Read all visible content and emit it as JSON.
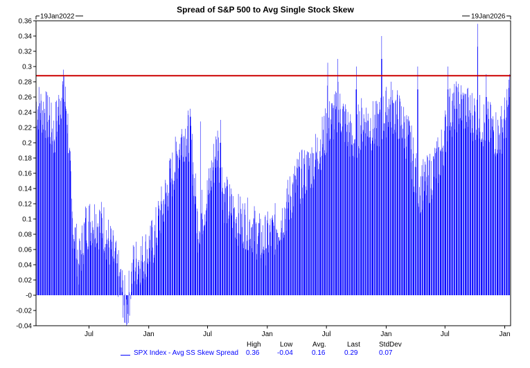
{
  "chart_data": {
    "type": "bar",
    "title": "Spread of S&P 500 to Avg Single Stock Skew",
    "start_label": "19Jan2022",
    "end_label": "19Jan2026",
    "ylim": [
      -0.04,
      0.36
    ],
    "yticks": [
      "0.36",
      "0.34",
      "0.32",
      "0.3",
      "0.28",
      "0.26",
      "0.24",
      "0.22",
      "0.2",
      "0.18",
      "0.16",
      "0.14",
      "0.12",
      "0.1",
      "0.08",
      "0.06",
      "0.04",
      "0.02",
      "-0",
      "-0.02",
      "-0.04"
    ],
    "xticks": [
      "Jul",
      "Jan",
      "Jul",
      "Jan",
      "Jul",
      "Jan",
      "Jul",
      "Jan"
    ],
    "reference_line": 0.288,
    "series_color": "#0000ff",
    "reference_color": "#cc0000",
    "series": [
      {
        "name": "SPX Index - Avg SS Skew Spread",
        "x_start": "2022-01-19",
        "x_end": "2026-01-19",
        "anchors": [
          {
            "date": "2022-01-19",
            "value": 0.25
          },
          {
            "date": "2022-02-15",
            "value": 0.24
          },
          {
            "date": "2022-03-15",
            "value": 0.21
          },
          {
            "date": "2022-04-10",
            "value": 0.27
          },
          {
            "date": "2022-04-25",
            "value": 0.24
          },
          {
            "date": "2022-05-10",
            "value": 0.1
          },
          {
            "date": "2022-06-01",
            "value": 0.04
          },
          {
            "date": "2022-06-20",
            "value": 0.09
          },
          {
            "date": "2022-07-15",
            "value": 0.1
          },
          {
            "date": "2022-08-15",
            "value": 0.09
          },
          {
            "date": "2022-09-15",
            "value": 0.05
          },
          {
            "date": "2022-10-10",
            "value": 0.01
          },
          {
            "date": "2022-10-25",
            "value": -0.02
          },
          {
            "date": "2022-11-15",
            "value": 0.04
          },
          {
            "date": "2022-12-15",
            "value": 0.05
          },
          {
            "date": "2023-01-15",
            "value": 0.07
          },
          {
            "date": "2023-02-15",
            "value": 0.12
          },
          {
            "date": "2023-03-15",
            "value": 0.16
          },
          {
            "date": "2023-04-15",
            "value": 0.21
          },
          {
            "date": "2023-05-10",
            "value": 0.21
          },
          {
            "date": "2023-06-01",
            "value": 0.09
          },
          {
            "date": "2023-07-01",
            "value": 0.13
          },
          {
            "date": "2023-08-01",
            "value": 0.2
          },
          {
            "date": "2023-08-20",
            "value": 0.13
          },
          {
            "date": "2023-10-01",
            "value": 0.1
          },
          {
            "date": "2023-11-15",
            "value": 0.09
          },
          {
            "date": "2023-12-15",
            "value": 0.07
          },
          {
            "date": "2024-01-15",
            "value": 0.08
          },
          {
            "date": "2024-02-15",
            "value": 0.1
          },
          {
            "date": "2024-04-01",
            "value": 0.15
          },
          {
            "date": "2024-05-15",
            "value": 0.17
          },
          {
            "date": "2024-06-15",
            "value": 0.2
          },
          {
            "date": "2024-07-15",
            "value": 0.23
          },
          {
            "date": "2024-08-15",
            "value": 0.24
          },
          {
            "date": "2024-09-20",
            "value": 0.2
          },
          {
            "date": "2024-10-20",
            "value": 0.23
          },
          {
            "date": "2024-12-01",
            "value": 0.22
          },
          {
            "date": "2025-01-15",
            "value": 0.25
          },
          {
            "date": "2025-02-15",
            "value": 0.23
          },
          {
            "date": "2025-03-15",
            "value": 0.2
          },
          {
            "date": "2025-04-10",
            "value": 0.14
          },
          {
            "date": "2025-05-10",
            "value": 0.15
          },
          {
            "date": "2025-06-15",
            "value": 0.18
          },
          {
            "date": "2025-07-15",
            "value": 0.24
          },
          {
            "date": "2025-08-15",
            "value": 0.25
          },
          {
            "date": "2025-09-15",
            "value": 0.24
          },
          {
            "date": "2025-10-15",
            "value": 0.23
          },
          {
            "date": "2025-11-15",
            "value": 0.22
          },
          {
            "date": "2025-12-15",
            "value": 0.21
          },
          {
            "date": "2026-01-10",
            "value": 0.24
          },
          {
            "date": "2026-01-19",
            "value": 0.29
          }
        ],
        "spikes": [
          {
            "date": "2022-03-01",
            "value": 0.26
          },
          {
            "date": "2022-04-15",
            "value": 0.287
          },
          {
            "date": "2022-10-18",
            "value": -0.036
          },
          {
            "date": "2023-06-10",
            "value": 0.258
          },
          {
            "date": "2023-08-10",
            "value": 0.23
          },
          {
            "date": "2024-07-05",
            "value": 0.305
          },
          {
            "date": "2024-08-05",
            "value": 0.31
          },
          {
            "date": "2024-10-01",
            "value": 0.3
          },
          {
            "date": "2024-12-18",
            "value": 0.34
          },
          {
            "date": "2025-04-08",
            "value": 0.3
          },
          {
            "date": "2025-07-10",
            "value": 0.3
          },
          {
            "date": "2025-10-10",
            "value": 0.356
          },
          {
            "date": "2025-11-05",
            "value": 0.29
          },
          {
            "date": "2026-01-16",
            "value": 0.29
          }
        ]
      }
    ]
  },
  "stats": {
    "headers": [
      "High",
      "Low",
      "Avg.",
      "Last",
      "StdDev"
    ],
    "values": [
      "0.36",
      "-0.04",
      "0.16",
      "0.29",
      "0.07"
    ]
  }
}
